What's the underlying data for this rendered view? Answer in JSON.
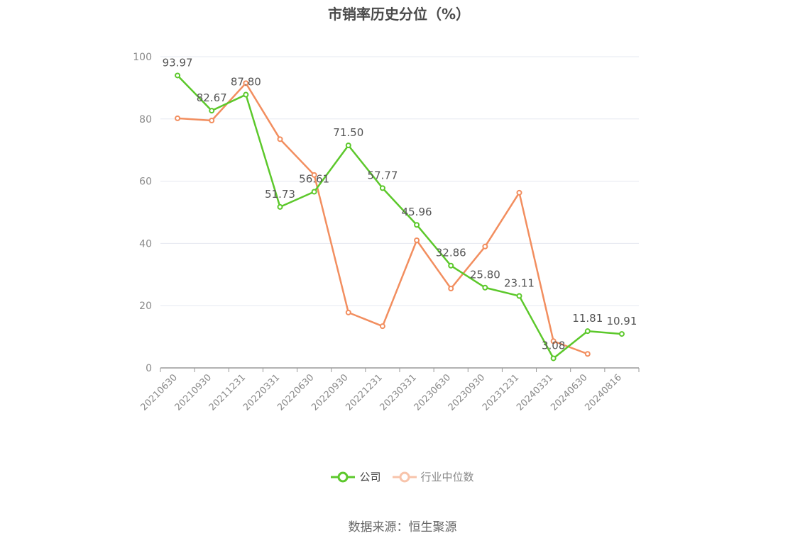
{
  "chart_data": {
    "type": "line",
    "title": "市销率历史分位（%）",
    "categories": [
      "20210630",
      "20210930",
      "20211231",
      "20220331",
      "20220630",
      "20220930",
      "20221231",
      "20230331",
      "20230630",
      "20230930",
      "20231231",
      "20240331",
      "20240630",
      "20240816"
    ],
    "ylim": [
      0,
      100
    ],
    "yticks": [
      0,
      20,
      40,
      60,
      80,
      100
    ],
    "grid": true,
    "legend_position": "bottom",
    "series": [
      {
        "name": "公司",
        "color": "#5cc82b",
        "values": [
          93.97,
          82.67,
          87.8,
          51.73,
          56.61,
          71.5,
          57.77,
          45.96,
          32.86,
          25.8,
          23.11,
          3.08,
          11.81,
          10.91
        ],
        "value_labels": [
          "93.97",
          "82.67",
          "87.80",
          "51.73",
          "56.61",
          "71.50",
          "57.77",
          "45.96",
          "32.86",
          "25.80",
          "23.11",
          "3.08",
          "11.81",
          "10.91"
        ]
      },
      {
        "name": "行业中位数",
        "color": "#f28e5f",
        "values": [
          80.2,
          79.5,
          91.5,
          73.5,
          62.0,
          17.8,
          13.4,
          41.0,
          25.5,
          39.0,
          56.3,
          8.6,
          4.5,
          null
        ]
      }
    ]
  },
  "legend": {
    "company": "公司",
    "industry": "行业中位数"
  },
  "source": "数据来源：恒生聚源"
}
